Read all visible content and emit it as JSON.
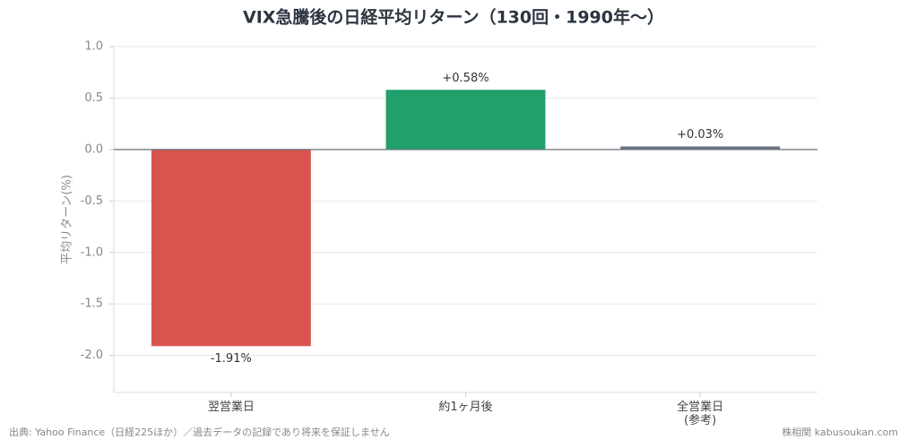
{
  "chart_data": {
    "type": "bar",
    "title": "VIX急騰後の日経平均リターン（130回・1990年〜）",
    "y_label": "平均リターン(%)",
    "categories": [
      "翌営業日",
      "約1ヶ月後",
      "全営業日\n(参考)"
    ],
    "values": [
      -1.91,
      0.58,
      0.03
    ],
    "value_labels": [
      "-1.91%",
      "+0.58%",
      "+0.03%"
    ],
    "colors": [
      "#d9534f",
      "#21a06c",
      "#6b7280"
    ],
    "ylim": [
      -2.36,
      1.0
    ],
    "yticks": [
      {
        "value": 1.0,
        "label": "1.0"
      },
      0.5,
      {
        "value": 0.0,
        "label": "0.0"
      },
      -0.5,
      {
        "value": -1.0,
        "label": "-1.0"
      },
      -1.5,
      {
        "value": -2.0,
        "label": "-2.0"
      }
    ],
    "grid": true,
    "source": "出典: Yahoo Finance（日経225ほか）／過去データの記録であり将来を保証しません",
    "credit": "株相関 kabusoukan.com"
  }
}
